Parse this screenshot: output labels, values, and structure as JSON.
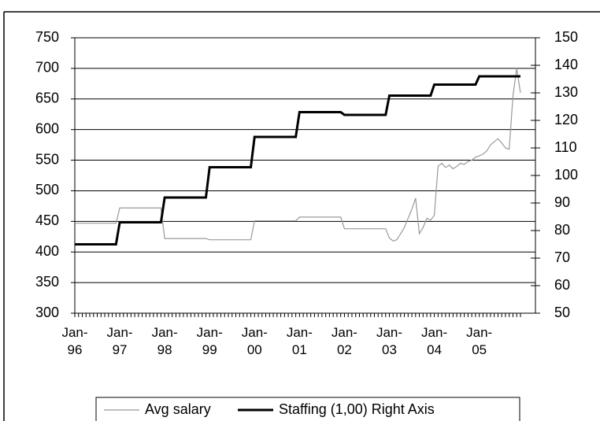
{
  "chart_data": {
    "type": "line",
    "categories": [
      "Jan-96",
      null,
      null,
      null,
      null,
      null,
      null,
      null,
      null,
      null,
      null,
      null,
      "Jan-97",
      null,
      null,
      null,
      null,
      null,
      null,
      null,
      null,
      null,
      null,
      null,
      "Jan-98",
      null,
      null,
      null,
      null,
      null,
      null,
      null,
      null,
      null,
      null,
      null,
      "Jan-99",
      null,
      null,
      null,
      null,
      null,
      null,
      null,
      null,
      null,
      null,
      null,
      "Jan-00",
      null,
      null,
      null,
      null,
      null,
      null,
      null,
      null,
      null,
      null,
      null,
      "Jan-01",
      null,
      null,
      null,
      null,
      null,
      null,
      null,
      null,
      null,
      null,
      null,
      "Jan-02",
      null,
      null,
      null,
      null,
      null,
      null,
      null,
      null,
      null,
      null,
      null,
      "Jan-03",
      null,
      null,
      null,
      null,
      null,
      null,
      null,
      null,
      null,
      null,
      null,
      "Jan-04",
      null,
      null,
      null,
      null,
      null,
      null,
      null,
      null,
      null,
      null,
      null,
      "Jan-05",
      null,
      null,
      null,
      null,
      null,
      null,
      null,
      null,
      null,
      null,
      null
    ],
    "series": [
      {
        "name": "Avg salary",
        "color": "#999999",
        "values": [
          447,
          447,
          447,
          447,
          447,
          447,
          447,
          447,
          447,
          447,
          447,
          447,
          472,
          472,
          472,
          472,
          472,
          472,
          472,
          472,
          472,
          472,
          472,
          472,
          422,
          422,
          422,
          422,
          422,
          422,
          422,
          422,
          422,
          422,
          422,
          422,
          420,
          420,
          420,
          420,
          420,
          420,
          420,
          420,
          420,
          420,
          420,
          420,
          451,
          451,
          451,
          451,
          451,
          451,
          451,
          451,
          451,
          451,
          451,
          451,
          457,
          457,
          457,
          457,
          457,
          457,
          457,
          457,
          457,
          457,
          457,
          457,
          438,
          438,
          438,
          438,
          438,
          438,
          438,
          438,
          438,
          438,
          438,
          438,
          423,
          418,
          420,
          430,
          440,
          455,
          470,
          488,
          430,
          440,
          455,
          452,
          460,
          540,
          545,
          538,
          542,
          536,
          540,
          545,
          543,
          548,
          550,
          555,
          557,
          560,
          565,
          575,
          580,
          585,
          578,
          570,
          568,
          655,
          700,
          660
        ]
      },
      {
        "name": "Staffing (1,00) Right Axis",
        "color": "#000000",
        "axis": "y2",
        "values": [
          75,
          75,
          75,
          75,
          75,
          75,
          75,
          75,
          75,
          75,
          75,
          75,
          83,
          83,
          83,
          83,
          83,
          83,
          83,
          83,
          83,
          83,
          83,
          83,
          92,
          92,
          92,
          92,
          92,
          92,
          92,
          92,
          92,
          92,
          92,
          92,
          103,
          103,
          103,
          103,
          103,
          103,
          103,
          103,
          103,
          103,
          103,
          103,
          114,
          114,
          114,
          114,
          114,
          114,
          114,
          114,
          114,
          114,
          114,
          114,
          123,
          123,
          123,
          123,
          123,
          123,
          123,
          123,
          123,
          123,
          123,
          123,
          122,
          122,
          122,
          122,
          122,
          122,
          122,
          122,
          122,
          122,
          122,
          122,
          129,
          129,
          129,
          129,
          129,
          129,
          129,
          129,
          129,
          129,
          129,
          129,
          133,
          133,
          133,
          133,
          133,
          133,
          133,
          133,
          133,
          133,
          133,
          133,
          136,
          136,
          136,
          136,
          136,
          136,
          136,
          136,
          136,
          136,
          136,
          136
        ]
      }
    ],
    "ylim": [
      300,
      750
    ],
    "yticks": [
      300,
      350,
      400,
      450,
      500,
      550,
      600,
      650,
      700,
      750
    ],
    "y2lim": [
      50,
      150
    ],
    "y2ticks": [
      50,
      60,
      70,
      80,
      90,
      100,
      110,
      120,
      130,
      140,
      150
    ],
    "grid": true,
    "legend": "bottom"
  }
}
